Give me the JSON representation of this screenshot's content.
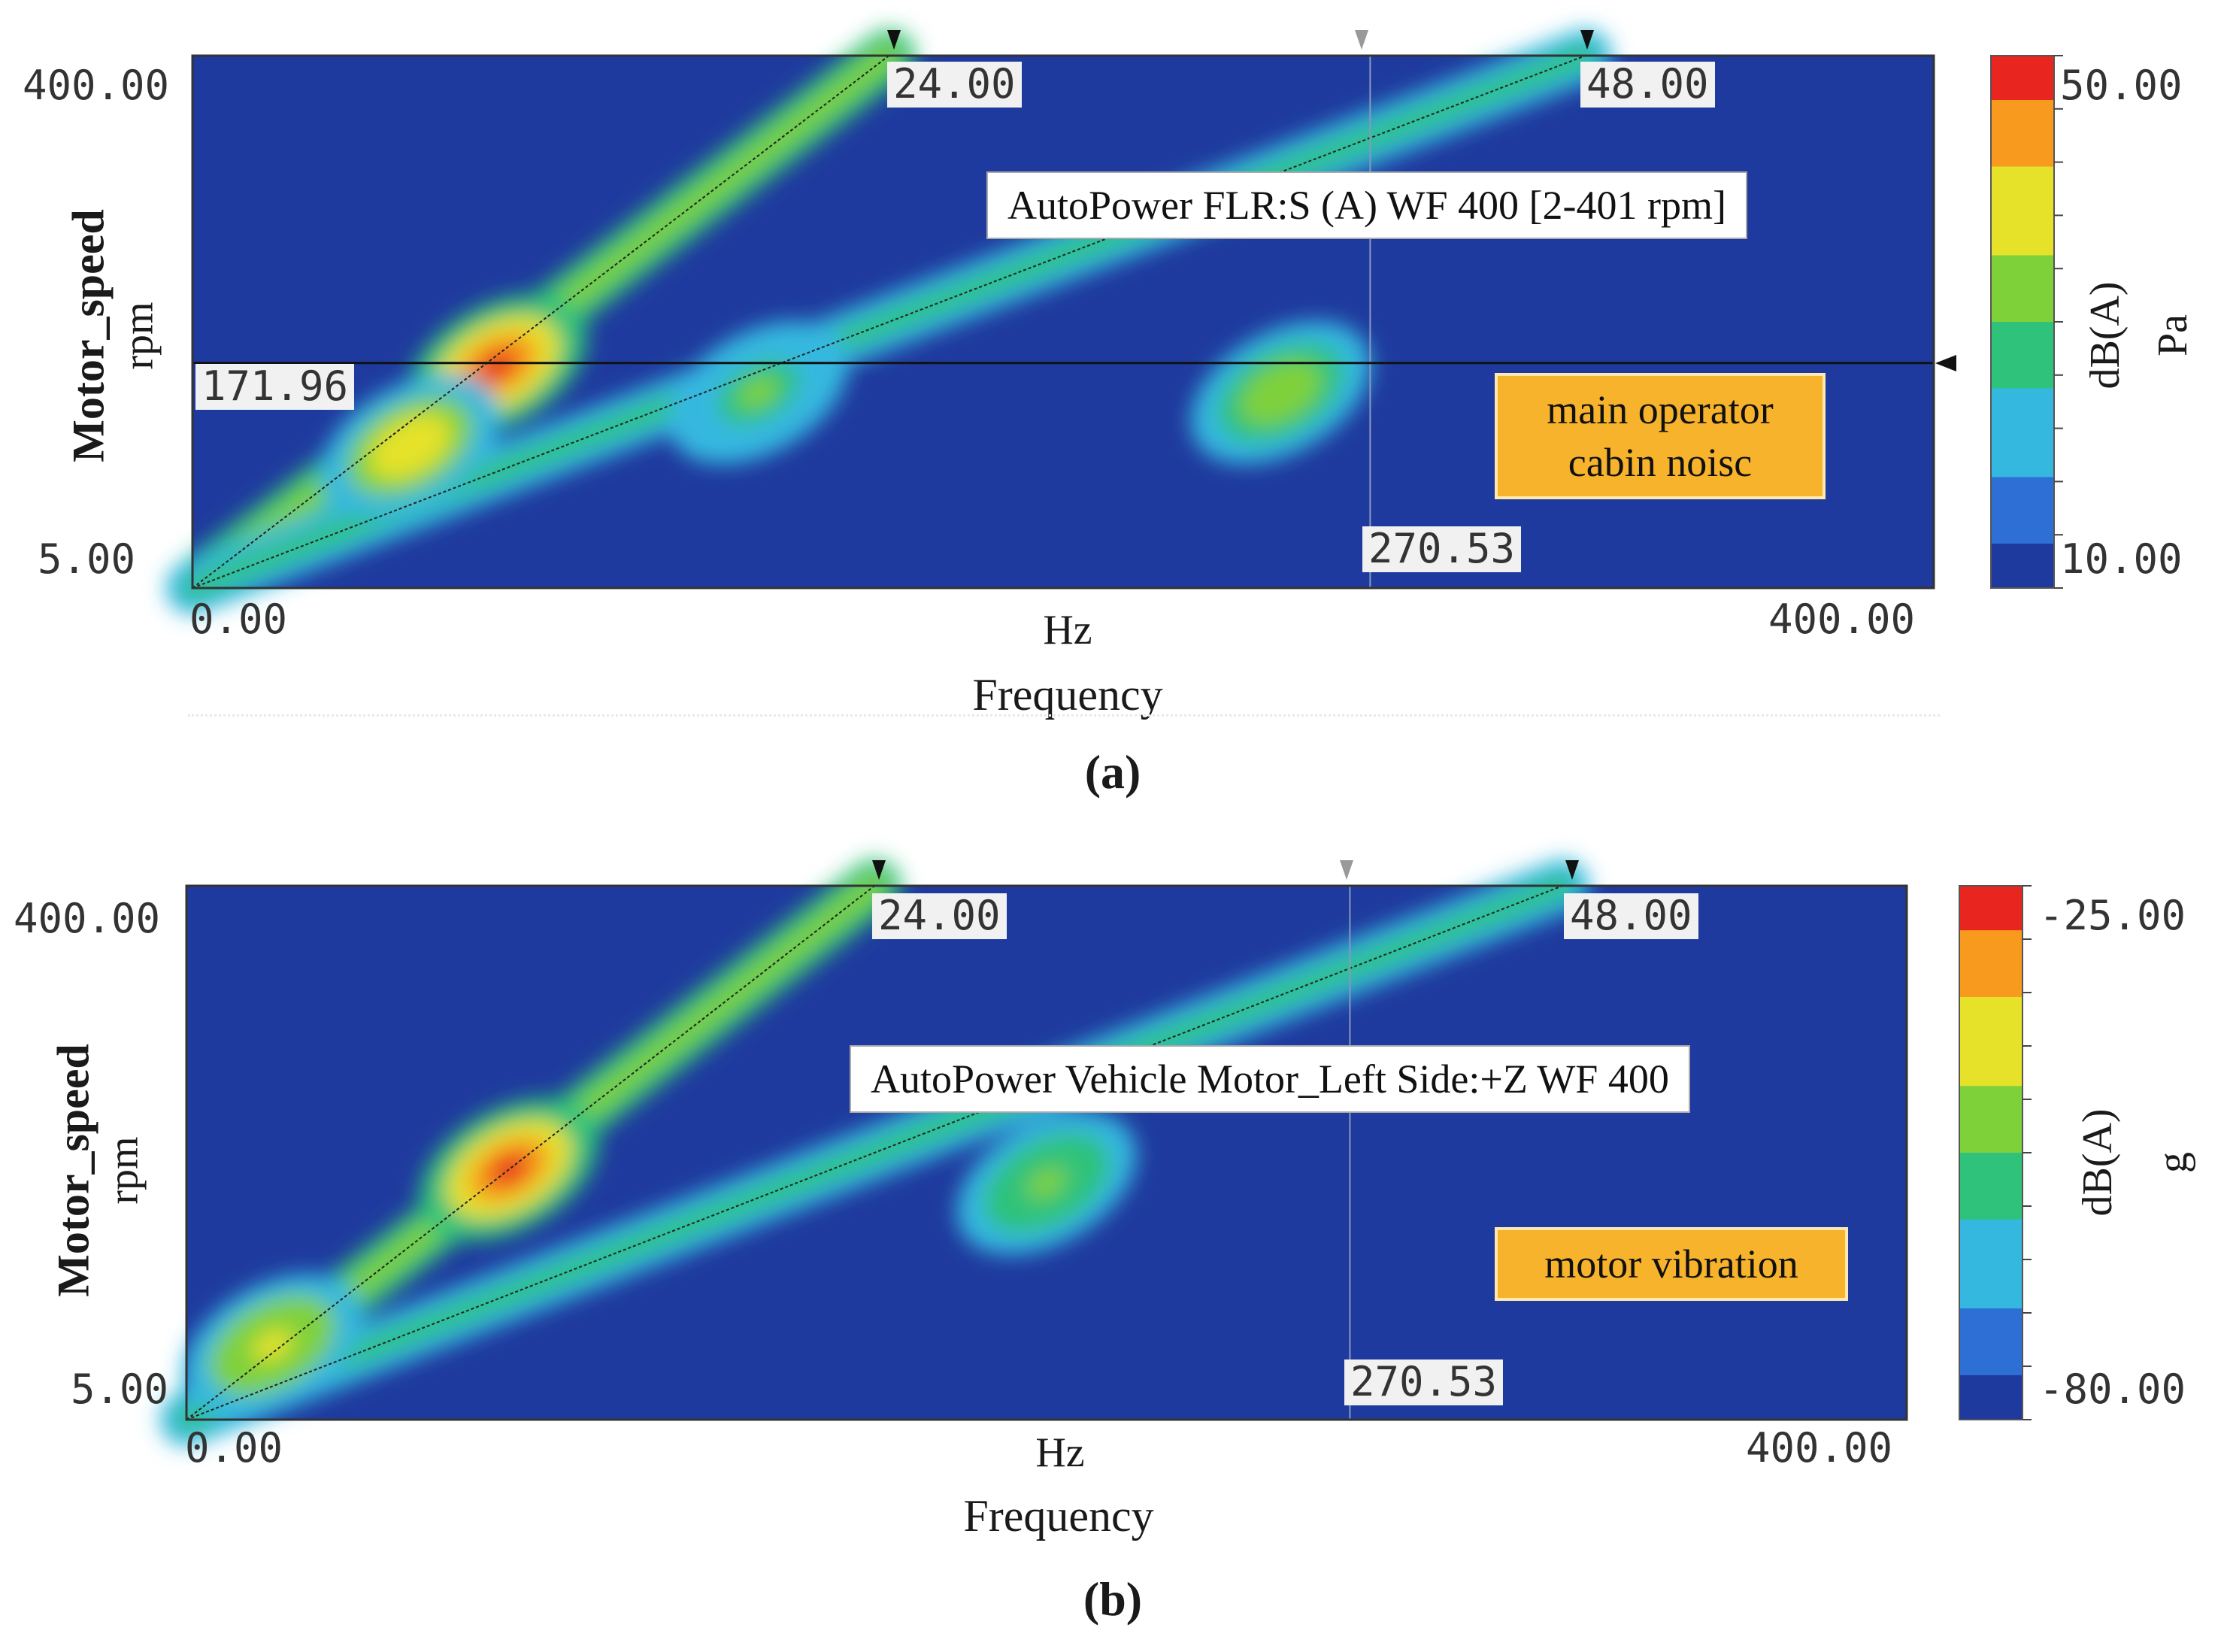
{
  "chart_data": [
    {
      "type": "heatmap",
      "panel": "(a)",
      "title": "AutoPower FLR:S (A) WF 400 [2-401 rpm]",
      "xlabel": "Frequency",
      "xunit": "Hz",
      "ylabel": "Motor_speed",
      "yunit": "rpm",
      "xlim": [
        0,
        400
      ],
      "ylim": [
        5,
        400
      ],
      "x_tick_labels": [
        "0.00",
        "400.00"
      ],
      "y_tick_labels": [
        "5.00",
        "400.00"
      ],
      "colorbar": {
        "label": "dB(A)",
        "unit": "Pa",
        "range": [
          10,
          50
        ],
        "tick_labels": [
          "10.00",
          "50.00"
        ]
      },
      "cursor_labels": {
        "order_24": "24.00",
        "order_48": "48.00",
        "speed": "171.96",
        "frequency": "270.53"
      },
      "cursors": {
        "order_24_freq": 160,
        "order_48_freq": 320,
        "gray_freq": 270.53,
        "speed_rpm": 171.96
      },
      "annotation": "main operator cabin noisc",
      "orders": [
        {
          "name": "24.00",
          "x": [
            0,
            160
          ],
          "y": [
            5,
            400
          ]
        },
        {
          "name": "48.00",
          "x": [
            0,
            320
          ],
          "y": [
            5,
            400
          ]
        }
      ],
      "hotspots": [
        {
          "x": 70,
          "y": 170,
          "level": 50
        },
        {
          "x": 50,
          "y": 110,
          "level": 40
        },
        {
          "x": 250,
          "y": 150,
          "level": 35
        },
        {
          "x": 130,
          "y": 150,
          "level": 30
        }
      ]
    },
    {
      "type": "heatmap",
      "panel": "(b)",
      "title": "AutoPower Vehicle Motor_Left Side:+Z WF 400",
      "xlabel": "Frequency",
      "xunit": "Hz",
      "ylabel": "Motor_speed",
      "yunit": "rpm",
      "xlim": [
        0,
        400
      ],
      "ylim": [
        5,
        400
      ],
      "x_tick_labels": [
        "0.00",
        "400.00"
      ],
      "y_tick_labels": [
        "5.00",
        "400.00"
      ],
      "colorbar": {
        "label": "dB(A)",
        "unit": "g",
        "range": [
          -80,
          -25
        ],
        "tick_labels": [
          "-80.00",
          "-25.00"
        ]
      },
      "cursor_labels": {
        "order_24": "24.00",
        "order_48": "48.00",
        "frequency": "270.53"
      },
      "cursors": {
        "order_24_freq": 160,
        "order_48_freq": 320,
        "gray_freq": 270.53
      },
      "annotation": "motor vibration",
      "orders": [
        {
          "name": "24.00",
          "x": [
            0,
            160
          ],
          "y": [
            5,
            400
          ]
        },
        {
          "name": "48.00",
          "x": [
            0,
            320
          ],
          "y": [
            5,
            400
          ]
        }
      ],
      "hotspots": [
        {
          "x": 75,
          "y": 190,
          "level": -25
        },
        {
          "x": 20,
          "y": 60,
          "level": -40
        },
        {
          "x": 200,
          "y": 180,
          "level": -50
        }
      ]
    }
  ],
  "colors": {
    "background": "#1f3a9e",
    "ramp": [
      "#1f3a9e",
      "#2e6fd6",
      "#34b8e0",
      "#2fc27a",
      "#7fd13a",
      "#e6e22a",
      "#f79a1e",
      "#e8251f"
    ],
    "note_fill": "#f7b32b"
  },
  "captions": {
    "a": "(a)",
    "b": "(b)"
  }
}
